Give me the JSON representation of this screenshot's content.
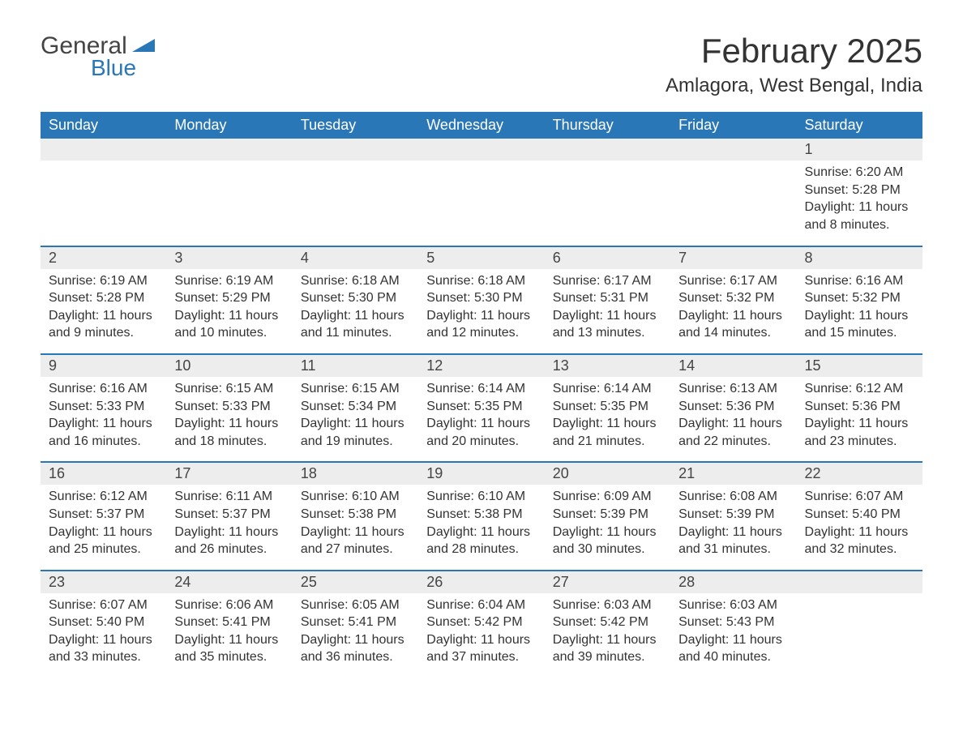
{
  "logo": {
    "general": "General",
    "blue": "Blue",
    "wedge_color": "#2a77b8"
  },
  "title": "February 2025",
  "subtitle": "Amlagora, West Bengal, India",
  "colors": {
    "header_bg": "#2a77b8",
    "header_text": "#ffffff",
    "daynum_bg": "#ededed",
    "body_text": "#333333",
    "row_border": "#2a77b8",
    "page_bg": "#ffffff"
  },
  "weekdays": [
    "Sunday",
    "Monday",
    "Tuesday",
    "Wednesday",
    "Thursday",
    "Friday",
    "Saturday"
  ],
  "weeks": [
    [
      {
        "n": "",
        "empty": true
      },
      {
        "n": "",
        "empty": true
      },
      {
        "n": "",
        "empty": true
      },
      {
        "n": "",
        "empty": true
      },
      {
        "n": "",
        "empty": true
      },
      {
        "n": "",
        "empty": true
      },
      {
        "n": "1",
        "sunrise": "Sunrise: 6:20 AM",
        "sunset": "Sunset: 5:28 PM",
        "daylight": "Daylight: 11 hours and 8 minutes."
      }
    ],
    [
      {
        "n": "2",
        "sunrise": "Sunrise: 6:19 AM",
        "sunset": "Sunset: 5:28 PM",
        "daylight": "Daylight: 11 hours and 9 minutes."
      },
      {
        "n": "3",
        "sunrise": "Sunrise: 6:19 AM",
        "sunset": "Sunset: 5:29 PM",
        "daylight": "Daylight: 11 hours and 10 minutes."
      },
      {
        "n": "4",
        "sunrise": "Sunrise: 6:18 AM",
        "sunset": "Sunset: 5:30 PM",
        "daylight": "Daylight: 11 hours and 11 minutes."
      },
      {
        "n": "5",
        "sunrise": "Sunrise: 6:18 AM",
        "sunset": "Sunset: 5:30 PM",
        "daylight": "Daylight: 11 hours and 12 minutes."
      },
      {
        "n": "6",
        "sunrise": "Sunrise: 6:17 AM",
        "sunset": "Sunset: 5:31 PM",
        "daylight": "Daylight: 11 hours and 13 minutes."
      },
      {
        "n": "7",
        "sunrise": "Sunrise: 6:17 AM",
        "sunset": "Sunset: 5:32 PM",
        "daylight": "Daylight: 11 hours and 14 minutes."
      },
      {
        "n": "8",
        "sunrise": "Sunrise: 6:16 AM",
        "sunset": "Sunset: 5:32 PM",
        "daylight": "Daylight: 11 hours and 15 minutes."
      }
    ],
    [
      {
        "n": "9",
        "sunrise": "Sunrise: 6:16 AM",
        "sunset": "Sunset: 5:33 PM",
        "daylight": "Daylight: 11 hours and 16 minutes."
      },
      {
        "n": "10",
        "sunrise": "Sunrise: 6:15 AM",
        "sunset": "Sunset: 5:33 PM",
        "daylight": "Daylight: 11 hours and 18 minutes."
      },
      {
        "n": "11",
        "sunrise": "Sunrise: 6:15 AM",
        "sunset": "Sunset: 5:34 PM",
        "daylight": "Daylight: 11 hours and 19 minutes."
      },
      {
        "n": "12",
        "sunrise": "Sunrise: 6:14 AM",
        "sunset": "Sunset: 5:35 PM",
        "daylight": "Daylight: 11 hours and 20 minutes."
      },
      {
        "n": "13",
        "sunrise": "Sunrise: 6:14 AM",
        "sunset": "Sunset: 5:35 PM",
        "daylight": "Daylight: 11 hours and 21 minutes."
      },
      {
        "n": "14",
        "sunrise": "Sunrise: 6:13 AM",
        "sunset": "Sunset: 5:36 PM",
        "daylight": "Daylight: 11 hours and 22 minutes."
      },
      {
        "n": "15",
        "sunrise": "Sunrise: 6:12 AM",
        "sunset": "Sunset: 5:36 PM",
        "daylight": "Daylight: 11 hours and 23 minutes."
      }
    ],
    [
      {
        "n": "16",
        "sunrise": "Sunrise: 6:12 AM",
        "sunset": "Sunset: 5:37 PM",
        "daylight": "Daylight: 11 hours and 25 minutes."
      },
      {
        "n": "17",
        "sunrise": "Sunrise: 6:11 AM",
        "sunset": "Sunset: 5:37 PM",
        "daylight": "Daylight: 11 hours and 26 minutes."
      },
      {
        "n": "18",
        "sunrise": "Sunrise: 6:10 AM",
        "sunset": "Sunset: 5:38 PM",
        "daylight": "Daylight: 11 hours and 27 minutes."
      },
      {
        "n": "19",
        "sunrise": "Sunrise: 6:10 AM",
        "sunset": "Sunset: 5:38 PM",
        "daylight": "Daylight: 11 hours and 28 minutes."
      },
      {
        "n": "20",
        "sunrise": "Sunrise: 6:09 AM",
        "sunset": "Sunset: 5:39 PM",
        "daylight": "Daylight: 11 hours and 30 minutes."
      },
      {
        "n": "21",
        "sunrise": "Sunrise: 6:08 AM",
        "sunset": "Sunset: 5:39 PM",
        "daylight": "Daylight: 11 hours and 31 minutes."
      },
      {
        "n": "22",
        "sunrise": "Sunrise: 6:07 AM",
        "sunset": "Sunset: 5:40 PM",
        "daylight": "Daylight: 11 hours and 32 minutes."
      }
    ],
    [
      {
        "n": "23",
        "sunrise": "Sunrise: 6:07 AM",
        "sunset": "Sunset: 5:40 PM",
        "daylight": "Daylight: 11 hours and 33 minutes."
      },
      {
        "n": "24",
        "sunrise": "Sunrise: 6:06 AM",
        "sunset": "Sunset: 5:41 PM",
        "daylight": "Daylight: 11 hours and 35 minutes."
      },
      {
        "n": "25",
        "sunrise": "Sunrise: 6:05 AM",
        "sunset": "Sunset: 5:41 PM",
        "daylight": "Daylight: 11 hours and 36 minutes."
      },
      {
        "n": "26",
        "sunrise": "Sunrise: 6:04 AM",
        "sunset": "Sunset: 5:42 PM",
        "daylight": "Daylight: 11 hours and 37 minutes."
      },
      {
        "n": "27",
        "sunrise": "Sunrise: 6:03 AM",
        "sunset": "Sunset: 5:42 PM",
        "daylight": "Daylight: 11 hours and 39 minutes."
      },
      {
        "n": "28",
        "sunrise": "Sunrise: 6:03 AM",
        "sunset": "Sunset: 5:43 PM",
        "daylight": "Daylight: 11 hours and 40 minutes."
      },
      {
        "n": "",
        "empty": true
      }
    ]
  ]
}
